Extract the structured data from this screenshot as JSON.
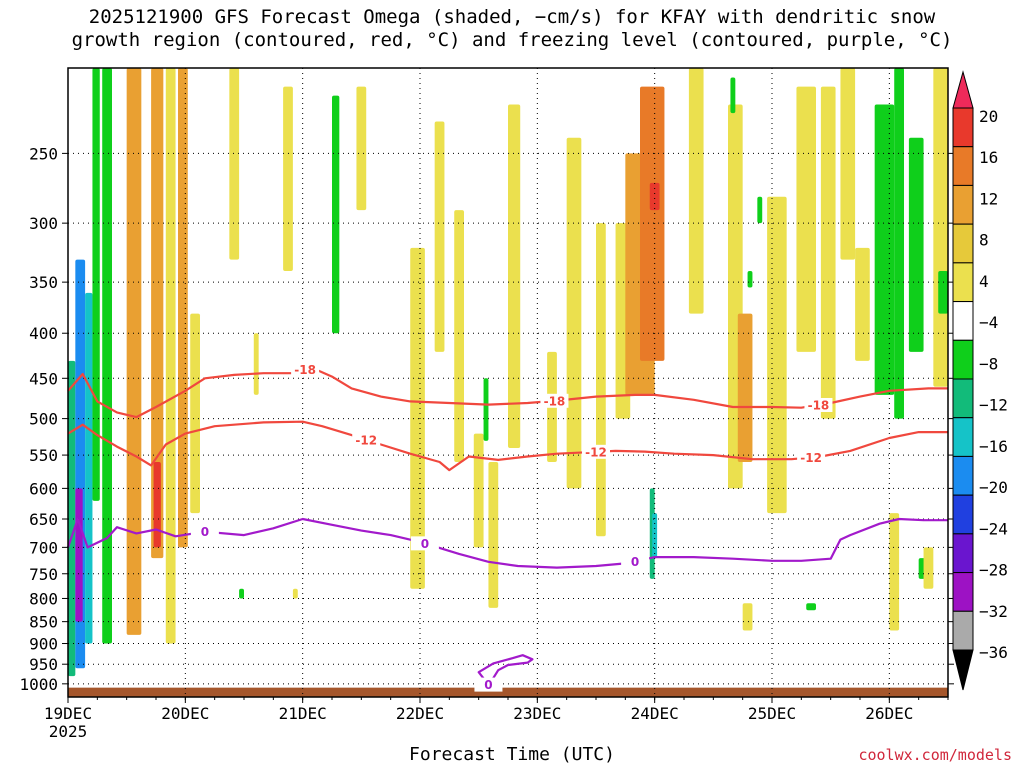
{
  "title_lines": [
    "2025121900 GFS Forecast Omega (shaded, −cm/s) for KFAY with dendritic snow",
    "growth region (contoured, red, °C) and freezing level (contoured, purple, °C)"
  ],
  "x_axis_title": "Forecast Time (UTC)",
  "credit": "coolwx.com/models",
  "chart_data": {
    "type": "heatmap",
    "title": "2025121900 GFS Forecast Omega (shaded, −cm/s) for KFAY with dendritic snow growth region (contoured, red, °C) and freezing level (contoured, purple, °C)",
    "xlabel": "Forecast Time (UTC)",
    "ylabel": "",
    "y_ticks": [
      250,
      300,
      350,
      400,
      450,
      500,
      550,
      600,
      650,
      700,
      750,
      800,
      850,
      900,
      950,
      1000
    ],
    "y_scale": "log",
    "y_inverted": true,
    "y_range_hpa": [
      200,
      1035
    ],
    "x_ticks": [
      {
        "hour": 0,
        "label": "19DEC",
        "label2": "2025"
      },
      {
        "hour": 24,
        "label": "20DEC"
      },
      {
        "hour": 48,
        "label": "21DEC"
      },
      {
        "hour": 72,
        "label": "22DEC"
      },
      {
        "hour": 96,
        "label": "23DEC"
      },
      {
        "hour": 120,
        "label": "24DEC"
      },
      {
        "hour": 144,
        "label": "25DEC"
      },
      {
        "hour": 168,
        "label": "26DEC"
      }
    ],
    "x_range_hours": [
      0,
      180
    ],
    "colorbar": {
      "labels": [
        "20",
        "16",
        "12",
        "8",
        "4",
        "−4",
        "−8",
        "−12",
        "−16",
        "−20",
        "−24",
        "−28",
        "−32",
        "−36"
      ],
      "colors": [
        "#ee2a5a",
        "#e8392c",
        "#e87a28",
        "#e9a032",
        "#e6c93a",
        "#ebe04e",
        "#ffffff",
        "#0fcf1b",
        "#12bb7a",
        "#15c3c8",
        "#1b8cf0",
        "#2040e0",
        "#6a15cf",
        "#9d12c4",
        "#aaaaaa",
        "#000000"
      ]
    },
    "omega_cells": [
      {
        "x0": 0.0,
        "x1": 1.5,
        "p_top": 430,
        "p_bot": 980,
        "value": -12,
        "color": "#12bb7a"
      },
      {
        "x0": 1.5,
        "x1": 3.5,
        "p_top": 330,
        "p_bot": 960,
        "value": -24,
        "color": "#1b8cf0"
      },
      {
        "x0": 3.5,
        "x1": 5.0,
        "p_top": 360,
        "p_bot": 900,
        "value": -16,
        "color": "#15c3c8"
      },
      {
        "x0": 5.0,
        "x1": 6.5,
        "p_top": 200,
        "p_bot": 620,
        "value": -8,
        "color": "#0fcf1b"
      },
      {
        "x0": 7.0,
        "x1": 9.0,
        "p_top": 200,
        "p_bot": 900,
        "value": -8,
        "color": "#0fcf1b"
      },
      {
        "x0": 1.5,
        "x1": 3.0,
        "p_top": 600,
        "p_bot": 850,
        "value": -28,
        "color": "#9d12c4"
      },
      {
        "x0": 12.0,
        "x1": 15.0,
        "p_top": 200,
        "p_bot": 880,
        "value": 8,
        "color": "#e9a032"
      },
      {
        "x0": 17.0,
        "x1": 19.5,
        "p_top": 200,
        "p_bot": 720,
        "value": 8,
        "color": "#e9a032"
      },
      {
        "x0": 17.5,
        "x1": 19.0,
        "p_top": 560,
        "p_bot": 700,
        "value": 16,
        "color": "#e8392c"
      },
      {
        "x0": 20.0,
        "x1": 22.0,
        "p_top": 200,
        "p_bot": 900,
        "value": 4,
        "color": "#ebe04e"
      },
      {
        "x0": 22.5,
        "x1": 24.5,
        "p_top": 200,
        "p_bot": 700,
        "value": 8,
        "color": "#e9a032"
      },
      {
        "x0": 25.0,
        "x1": 27.0,
        "p_top": 380,
        "p_bot": 640,
        "value": 4,
        "color": "#ebe04e"
      },
      {
        "x0": 33.0,
        "x1": 35.0,
        "p_top": 200,
        "p_bot": 330,
        "value": 4,
        "color": "#ebe04e"
      },
      {
        "x0": 38.0,
        "x1": 39.0,
        "p_top": 400,
        "p_bot": 470,
        "value": 4,
        "color": "#ebe04e"
      },
      {
        "x0": 44.0,
        "x1": 46.0,
        "p_top": 210,
        "p_bot": 340,
        "value": 4,
        "color": "#ebe04e"
      },
      {
        "x0": 54.0,
        "x1": 55.5,
        "p_top": 215,
        "p_bot": 400,
        "value": -8,
        "color": "#0fcf1b"
      },
      {
        "x0": 59.0,
        "x1": 61.0,
        "p_top": 210,
        "p_bot": 290,
        "value": 4,
        "color": "#ebe04e"
      },
      {
        "x0": 70.0,
        "x1": 73.0,
        "p_top": 320,
        "p_bot": 780,
        "value": 4,
        "color": "#ebe04e"
      },
      {
        "x0": 75.0,
        "x1": 77.0,
        "p_top": 230,
        "p_bot": 420,
        "value": 4,
        "color": "#ebe04e"
      },
      {
        "x0": 79.0,
        "x1": 81.0,
        "p_top": 290,
        "p_bot": 560,
        "value": 4,
        "color": "#ebe04e"
      },
      {
        "x0": 83.0,
        "x1": 85.0,
        "p_top": 520,
        "p_bot": 700,
        "value": 4,
        "color": "#ebe04e"
      },
      {
        "x0": 85.0,
        "x1": 86.0,
        "p_top": 450,
        "p_bot": 530,
        "value": -8,
        "color": "#0fcf1b"
      },
      {
        "x0": 86.0,
        "x1": 88.0,
        "p_top": 560,
        "p_bot": 820,
        "value": 4,
        "color": "#ebe04e"
      },
      {
        "x0": 90.0,
        "x1": 92.5,
        "p_top": 220,
        "p_bot": 540,
        "value": 4,
        "color": "#ebe04e"
      },
      {
        "x0": 98.0,
        "x1": 100.0,
        "p_top": 420,
        "p_bot": 560,
        "value": 4,
        "color": "#ebe04e"
      },
      {
        "x0": 102.0,
        "x1": 105.0,
        "p_top": 240,
        "p_bot": 600,
        "value": 4,
        "color": "#ebe04e"
      },
      {
        "x0": 108.0,
        "x1": 110.0,
        "p_top": 300,
        "p_bot": 680,
        "value": 4,
        "color": "#ebe04e"
      },
      {
        "x0": 112.0,
        "x1": 115.0,
        "p_top": 300,
        "p_bot": 500,
        "value": 4,
        "color": "#ebe04e"
      },
      {
        "x0": 114.0,
        "x1": 120.0,
        "p_top": 250,
        "p_bot": 470,
        "value": 8,
        "color": "#e9a032"
      },
      {
        "x0": 117.0,
        "x1": 122.0,
        "p_top": 210,
        "p_bot": 430,
        "value": 12,
        "color": "#e87a28"
      },
      {
        "x0": 119.0,
        "x1": 121.0,
        "p_top": 270,
        "p_bot": 290,
        "value": 16,
        "color": "#e8392c"
      },
      {
        "x0": 119.0,
        "x1": 120.0,
        "p_top": 600,
        "p_bot": 760,
        "value": -12,
        "color": "#12bb7a"
      },
      {
        "x0": 119.5,
        "x1": 120.5,
        "p_top": 640,
        "p_bot": 720,
        "value": -16,
        "color": "#15c3c8"
      },
      {
        "x0": 127.0,
        "x1": 130.0,
        "p_top": 200,
        "p_bot": 380,
        "value": 4,
        "color": "#ebe04e"
      },
      {
        "x0": 135.0,
        "x1": 138.0,
        "p_top": 220,
        "p_bot": 600,
        "value": 4,
        "color": "#ebe04e"
      },
      {
        "x0": 137.0,
        "x1": 140.0,
        "p_top": 380,
        "p_bot": 560,
        "value": 8,
        "color": "#e9a032"
      },
      {
        "x0": 135.5,
        "x1": 136.5,
        "p_top": 205,
        "p_bot": 225,
        "value": -8,
        "color": "#0fcf1b"
      },
      {
        "x0": 139.0,
        "x1": 140.0,
        "p_top": 340,
        "p_bot": 355,
        "value": -8,
        "color": "#0fcf1b"
      },
      {
        "x0": 141.0,
        "x1": 142.0,
        "p_top": 280,
        "p_bot": 300,
        "value": -8,
        "color": "#0fcf1b"
      },
      {
        "x0": 143.0,
        "x1": 147.0,
        "p_top": 280,
        "p_bot": 640,
        "value": 4,
        "color": "#ebe04e"
      },
      {
        "x0": 149.0,
        "x1": 153.0,
        "p_top": 210,
        "p_bot": 420,
        "value": 4,
        "color": "#ebe04e"
      },
      {
        "x0": 154.0,
        "x1": 157.0,
        "p_top": 210,
        "p_bot": 500,
        "value": 4,
        "color": "#ebe04e"
      },
      {
        "x0": 158.0,
        "x1": 161.0,
        "p_top": 200,
        "p_bot": 330,
        "value": 4,
        "color": "#ebe04e"
      },
      {
        "x0": 161.0,
        "x1": 164.0,
        "p_top": 320,
        "p_bot": 430,
        "value": 4,
        "color": "#ebe04e"
      },
      {
        "x0": 165.0,
        "x1": 169.0,
        "p_top": 220,
        "p_bot": 470,
        "value": -8,
        "color": "#0fcf1b"
      },
      {
        "x0": 169.0,
        "x1": 171.0,
        "p_top": 200,
        "p_bot": 500,
        "value": -8,
        "color": "#0fcf1b"
      },
      {
        "x0": 172.0,
        "x1": 175.0,
        "p_top": 240,
        "p_bot": 420,
        "value": -8,
        "color": "#0fcf1b"
      },
      {
        "x0": 177.0,
        "x1": 180.0,
        "p_top": 200,
        "p_bot": 460,
        "value": 4,
        "color": "#ebe04e"
      },
      {
        "x0": 178.0,
        "x1": 180.0,
        "p_top": 340,
        "p_bot": 380,
        "value": -8,
        "color": "#0fcf1b"
      },
      {
        "x0": 168.0,
        "x1": 170.0,
        "p_top": 640,
        "p_bot": 870,
        "value": 4,
        "color": "#ebe04e"
      },
      {
        "x0": 174.0,
        "x1": 176.0,
        "p_top": 720,
        "p_bot": 760,
        "value": -8,
        "color": "#0fcf1b"
      },
      {
        "x0": 175.0,
        "x1": 177.0,
        "p_top": 700,
        "p_bot": 780,
        "value": 4,
        "color": "#ebe04e"
      },
      {
        "x0": 138.0,
        "x1": 140.0,
        "p_top": 810,
        "p_bot": 870,
        "value": 4,
        "color": "#ebe04e"
      },
      {
        "x0": 151.0,
        "x1": 153.0,
        "p_top": 810,
        "p_bot": 825,
        "value": -8,
        "color": "#0fcf1b"
      },
      {
        "x0": 46.0,
        "x1": 47.0,
        "p_top": 780,
        "p_bot": 800,
        "value": 4,
        "color": "#ebe04e"
      },
      {
        "x0": 35.0,
        "x1": 36.0,
        "p_top": 780,
        "p_bot": 800,
        "value": -8,
        "color": "#0fcf1b"
      }
    ],
    "contours": [
      {
        "name": "-18",
        "color": "#f0483e",
        "label_hours": [
          48.5,
          99.5,
          153.5
        ],
        "points": [
          [
            0,
            465
          ],
          [
            3,
            445
          ],
          [
            6,
            478
          ],
          [
            10,
            492
          ],
          [
            14,
            498
          ],
          [
            18,
            485
          ],
          [
            24,
            465
          ],
          [
            28,
            450
          ],
          [
            34,
            446
          ],
          [
            40,
            444
          ],
          [
            46,
            444
          ],
          [
            48,
            440
          ],
          [
            50,
            438
          ],
          [
            54,
            448
          ],
          [
            58,
            462
          ],
          [
            64,
            472
          ],
          [
            70,
            478
          ],
          [
            78,
            480
          ],
          [
            86,
            482
          ],
          [
            94,
            480
          ],
          [
            100,
            477
          ],
          [
            108,
            472
          ],
          [
            116,
            470
          ],
          [
            120,
            470
          ],
          [
            128,
            476
          ],
          [
            136,
            485
          ],
          [
            144,
            485
          ],
          [
            150,
            486
          ],
          [
            156,
            480
          ],
          [
            162,
            472
          ],
          [
            168,
            465
          ],
          [
            176,
            462
          ],
          [
            180,
            462
          ]
        ]
      },
      {
        "name": "-12",
        "color": "#f0483e",
        "label_hours": [
          61,
          108,
          152
        ],
        "points": [
          [
            0,
            520
          ],
          [
            3,
            508
          ],
          [
            6,
            522
          ],
          [
            10,
            538
          ],
          [
            14,
            552
          ],
          [
            17,
            565
          ],
          [
            20,
            535
          ],
          [
            24,
            520
          ],
          [
            30,
            510
          ],
          [
            40,
            505
          ],
          [
            48,
            504
          ],
          [
            52,
            510
          ],
          [
            58,
            522
          ],
          [
            64,
            535
          ],
          [
            70,
            548
          ],
          [
            76,
            560
          ],
          [
            78,
            572
          ],
          [
            82,
            552
          ],
          [
            88,
            557
          ],
          [
            94,
            552
          ],
          [
            100,
            548
          ],
          [
            106,
            546
          ],
          [
            112,
            544
          ],
          [
            118,
            545
          ],
          [
            124,
            548
          ],
          [
            132,
            550
          ],
          [
            140,
            556
          ],
          [
            148,
            556
          ],
          [
            154,
            552
          ],
          [
            160,
            544
          ],
          [
            168,
            526
          ],
          [
            174,
            518
          ],
          [
            180,
            518
          ]
        ]
      },
      {
        "name": "0",
        "color": "#a21acb",
        "label_hours": [
          28,
          73,
          116
        ],
        "points": [
          [
            0,
            700
          ],
          [
            2,
            650
          ],
          [
            4,
            700
          ],
          [
            8,
            683
          ],
          [
            10,
            664
          ],
          [
            14,
            675
          ],
          [
            18,
            668
          ],
          [
            22,
            680
          ],
          [
            28,
            672
          ],
          [
            36,
            678
          ],
          [
            42,
            666
          ],
          [
            48,
            650
          ],
          [
            54,
            660
          ],
          [
            60,
            670
          ],
          [
            66,
            678
          ],
          [
            72,
            690
          ],
          [
            80,
            712
          ],
          [
            86,
            727
          ],
          [
            92,
            735
          ],
          [
            100,
            738
          ],
          [
            108,
            735
          ],
          [
            114,
            730
          ],
          [
            120,
            718
          ],
          [
            128,
            718
          ],
          [
            136,
            721
          ],
          [
            144,
            725
          ],
          [
            150,
            725
          ],
          [
            156,
            721
          ],
          [
            158,
            686
          ],
          [
            160,
            678
          ],
          [
            166,
            658
          ],
          [
            170,
            650
          ],
          [
            175,
            652
          ],
          [
            180,
            652
          ]
        ]
      },
      {
        "name": "0",
        "color": "#a21acb",
        "label_hours": [
          86
        ],
        "points": [
          [
            86,
            1002
          ],
          [
            84,
            970
          ],
          [
            87,
            948
          ],
          [
            91,
            935
          ],
          [
            93,
            928
          ],
          [
            95,
            938
          ],
          [
            94,
            946
          ],
          [
            90,
            952
          ],
          [
            88,
            965
          ],
          [
            87,
            985
          ],
          [
            86,
            1002
          ]
        ]
      }
    ]
  }
}
